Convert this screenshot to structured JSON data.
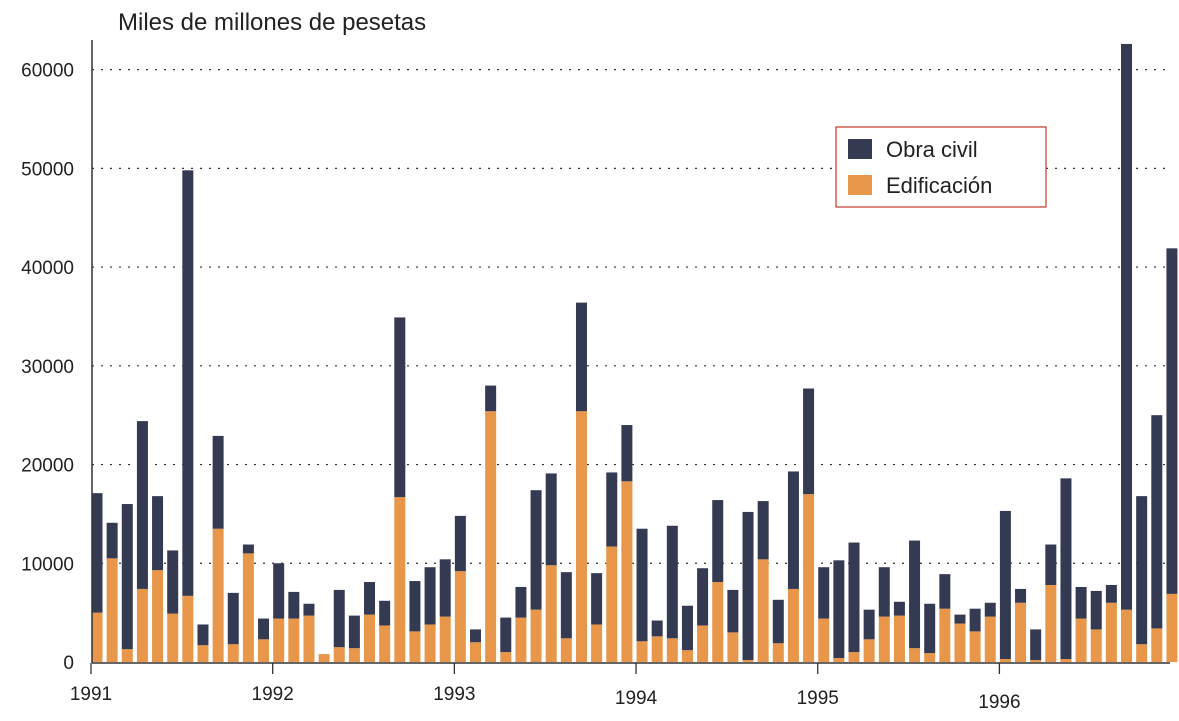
{
  "chart_data": {
    "type": "bar",
    "stacked": true,
    "title": "Miles de millones de pesetas",
    "xlabel": "",
    "ylabel": "",
    "ylim": [
      0,
      63000
    ],
    "yticks": [
      0,
      10000,
      20000,
      30000,
      40000,
      50000,
      60000
    ],
    "grid": "horizontal-dotted",
    "legend_position": "top-right",
    "x_tick_labels": [
      {
        "label": "1991",
        "index": 0
      },
      {
        "label": "1992",
        "index": 12
      },
      {
        "label": "1993",
        "index": 24
      },
      {
        "label": "1994",
        "index": 36
      },
      {
        "label": "1995",
        "index": 48
      },
      {
        "label": "1996",
        "index": 60
      }
    ],
    "series": [
      {
        "name": "Edificación",
        "color": "#e8974a",
        "values": [
          5000,
          10500,
          1300,
          7400,
          9300,
          4900,
          6700,
          1700,
          13500,
          1800,
          11000,
          2300,
          4400,
          4400,
          4700,
          800,
          1500,
          1400,
          4800,
          3700,
          16700,
          3100,
          3800,
          4600,
          9200,
          2000,
          25400,
          1000,
          4500,
          5300,
          9800,
          2400,
          25400,
          3800,
          11700,
          18300,
          2100,
          2600,
          2400,
          1200,
          3700,
          8100,
          3000,
          200,
          10400,
          1900,
          7400,
          17000,
          4400,
          400,
          1000,
          2300,
          4600,
          4700,
          1400,
          900,
          5400,
          3900,
          3100,
          4600,
          300,
          6000,
          200,
          7800,
          300,
          4400,
          3300,
          6000,
          5300,
          1800,
          3400,
          6900
        ]
      },
      {
        "name": "Obra civil",
        "color": "#353a53",
        "values": [
          12100,
          3600,
          14700,
          17000,
          7500,
          6400,
          43100,
          2100,
          9400,
          5200,
          900,
          2100,
          5600,
          2700,
          1200,
          0,
          5800,
          3300,
          3300,
          2500,
          18200,
          5100,
          5800,
          5800,
          5600,
          1300,
          2600,
          3500,
          3100,
          12100,
          9300,
          6700,
          11000,
          5200,
          7500,
          5700,
          11400,
          1600,
          11400,
          4500,
          5800,
          8300,
          4300,
          15000,
          5900,
          4400,
          11900,
          10700,
          5200,
          9900,
          11100,
          3000,
          5000,
          1400,
          10900,
          5000,
          3500,
          900,
          2300,
          1400,
          15000,
          1400,
          3100,
          4100,
          18300,
          3200,
          3900,
          1800,
          57300,
          15000,
          21600,
          35000
        ]
      }
    ]
  }
}
